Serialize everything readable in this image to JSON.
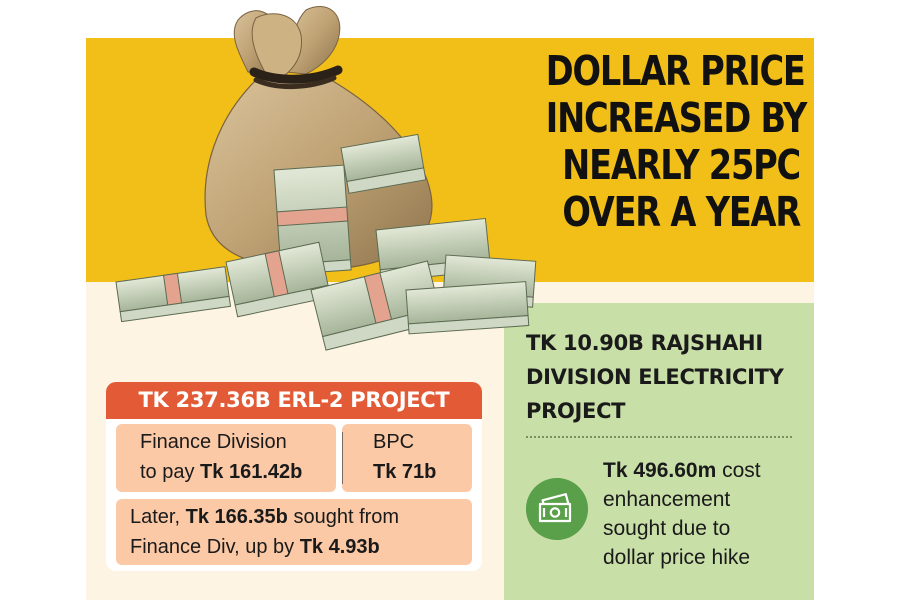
{
  "headline": {
    "lines": [
      "DOLLAR PRICE",
      "INCREASED BY",
      "NEARLY 25PC",
      "OVER A YEAR"
    ]
  },
  "erl2": {
    "title": "TK 237.36B ERL-2 PROJECT",
    "finance_line1": "Finance Division",
    "finance_line2_prefix": "to pay ",
    "finance_amount": "Tk 161.42b",
    "bpc_label": "BPC",
    "bpc_amount": "Tk 71b",
    "later_line1_prefix": "Later, ",
    "later_amount": "Tk 166.35b",
    "later_line1_suffix": " sought from",
    "later_line2_prefix": "Finance Div, up by ",
    "later_increase": "Tk 4.93b"
  },
  "rajshahi": {
    "lines": [
      "TK 10.90B RAJSHAHI",
      "DIVISION ELECTRICITY",
      "PROJECT"
    ],
    "amount": "Tk 496.60m",
    "line1_suffix": " cost",
    "line2": "enhancement",
    "line3": "sought due to",
    "line4": "dollar price hike",
    "icon": "money-icon"
  },
  "illustration": {
    "icon": "money-bag-with-dollar-bundles"
  },
  "colors": {
    "yellow": "#f2bf18",
    "green": "#c9dfa8",
    "cream": "#fdf4e3",
    "orange": "#e35a36",
    "peach": "#fbc9a6",
    "icon_green": "#5aa04a"
  }
}
